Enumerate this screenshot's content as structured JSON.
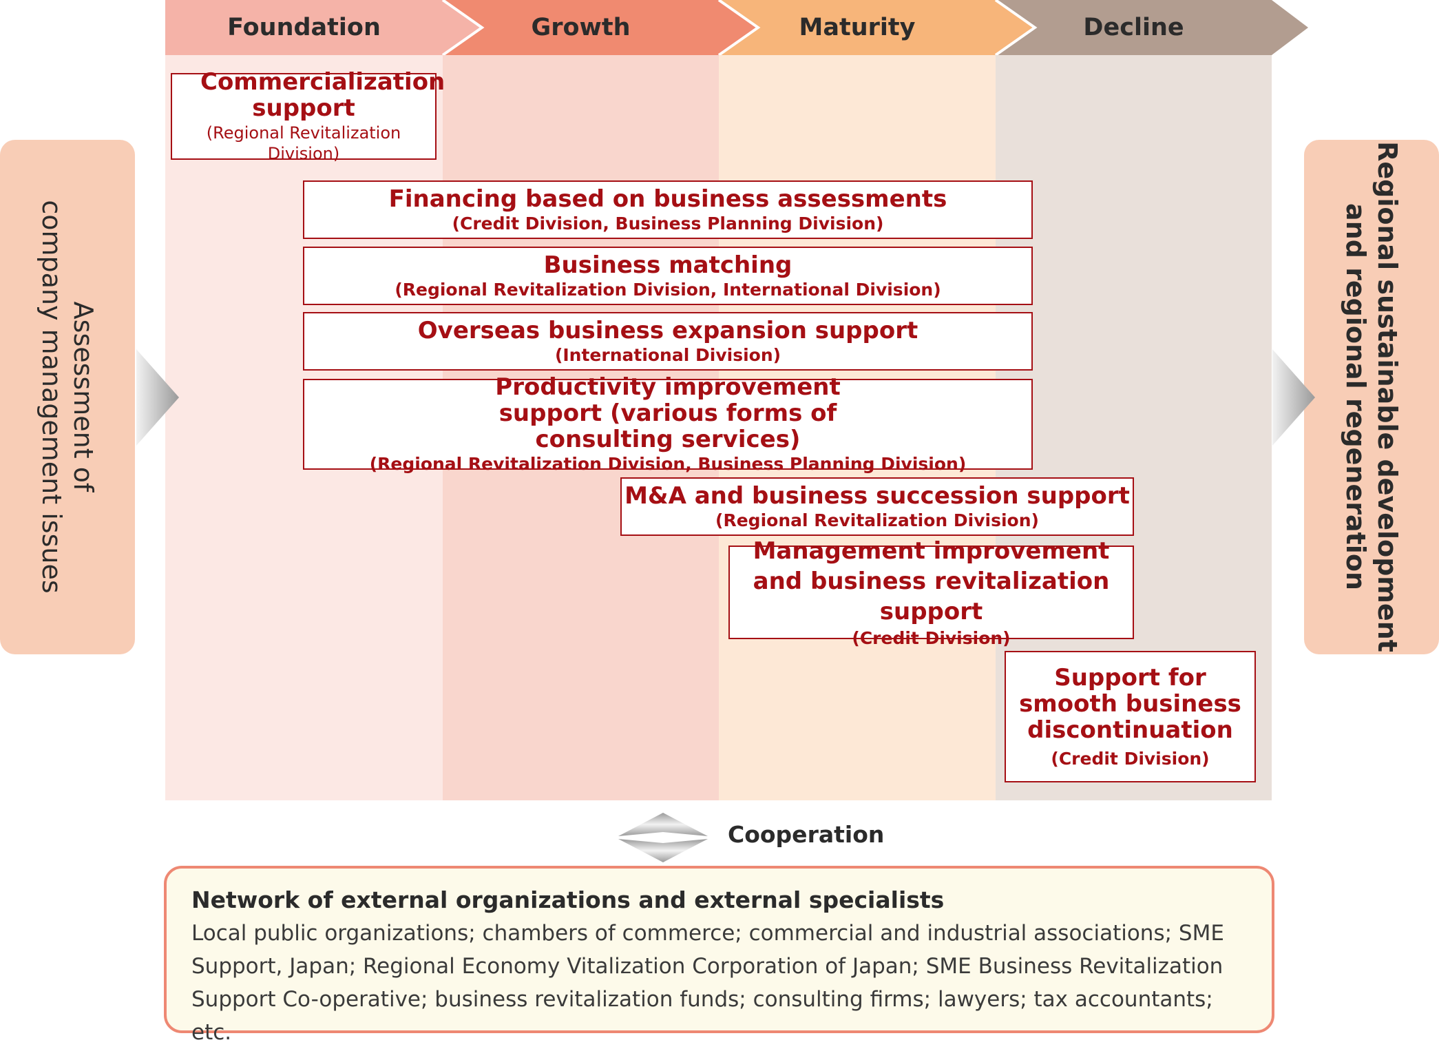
{
  "stages": [
    {
      "label": "Foundation",
      "head_color": "#f5b3a8",
      "bg_color": "#fce8e4"
    },
    {
      "label": "Growth",
      "head_color": "#f08a70",
      "bg_color": "#f9d6cd"
    },
    {
      "label": "Maturity",
      "head_color": "#f7b57a",
      "bg_color": "#fde8d6"
    },
    {
      "label": "Decline",
      "head_color": "#b29d90",
      "bg_color": "#e9e0da"
    }
  ],
  "left_panel": {
    "line1": "Assessment of",
    "line2": "company management issues",
    "color": "#f8cdb6"
  },
  "right_panel": {
    "line1": "Regional sustainable development",
    "line2": "and regional regeneration",
    "color": "#f8cdb6"
  },
  "supports": [
    {
      "title": "Commercialization support",
      "division": "(Regional Revitalization Division)"
    },
    {
      "title": "Financing based on business assessments",
      "division": "(Credit Division, Business Planning Division)"
    },
    {
      "title": "Business matching",
      "division": "(Regional Revitalization Division, International Division)"
    },
    {
      "title": "Overseas business expansion support",
      "division": "(International Division)"
    },
    {
      "title": "Productivity improvement support (various forms of consulting services)",
      "division": "(Regional Revitalization Division, Business Planning Division)"
    },
    {
      "title": "M&A and business succession support",
      "division": "(Regional Revitalization Division)"
    },
    {
      "title": "Management improvement and business revitalization support",
      "division": "(Credit Division)"
    },
    {
      "title": "Support for smooth business discontinuation",
      "division": "(Credit Division)"
    }
  ],
  "cooperation": {
    "label": "Cooperation"
  },
  "network": {
    "title": "Network of external organizations and external specialists",
    "body": "Local public organizations; chambers of commerce; commercial and industrial associations; SME Support, Japan; Regional Economy Vitalization Corporation of Japan; SME Business Revitalization Support Co-operative; business revitalization funds; consulting firms; lawyers; tax accountants; etc."
  },
  "colors": {
    "accent": "#a50f14",
    "network_border": "#ee8873",
    "network_bg": "#fdfaea"
  }
}
